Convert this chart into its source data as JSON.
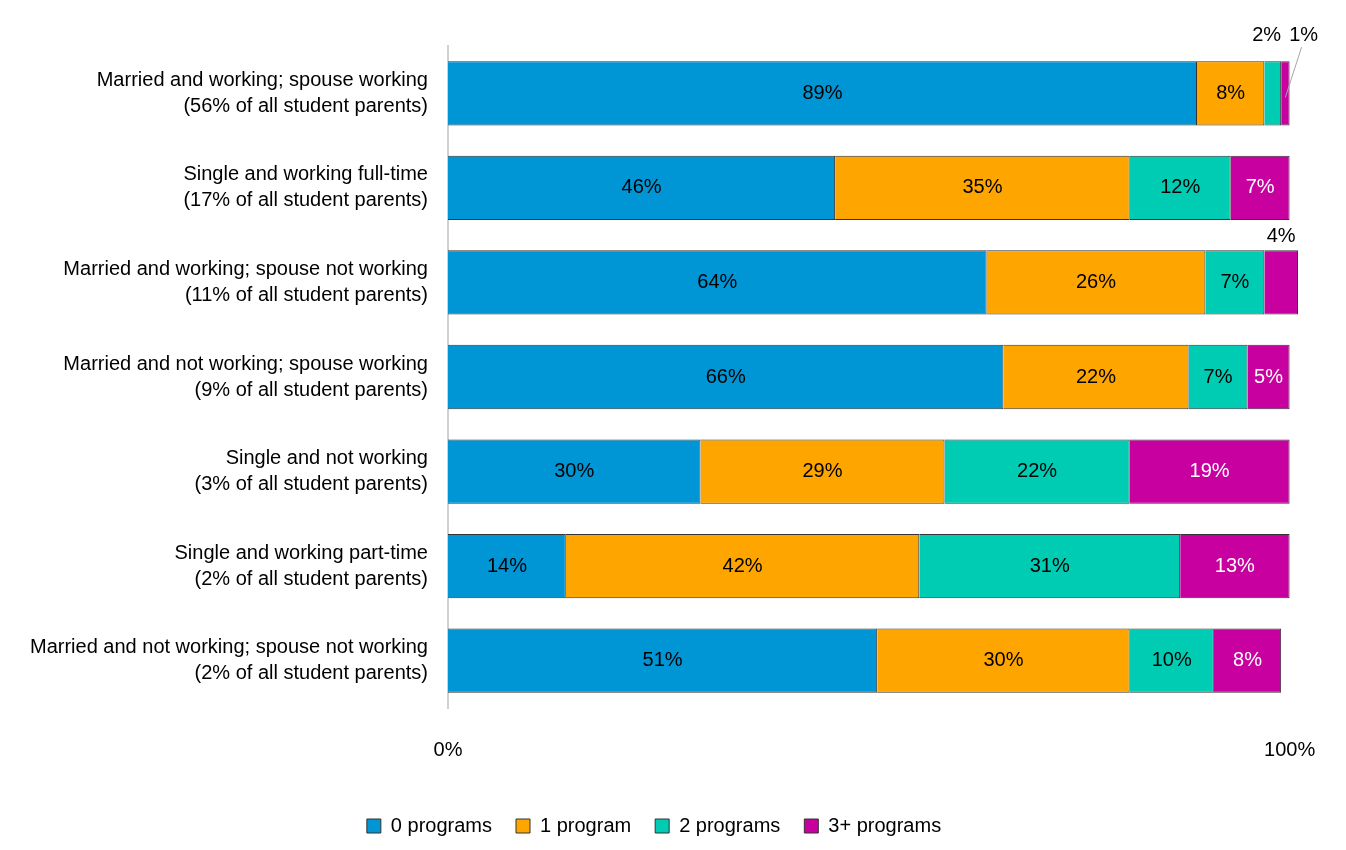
{
  "chart_data": {
    "type": "bar",
    "orientation": "horizontal",
    "stacked": true,
    "categories": [
      "Married and working; spouse working\n(56% of all student parents)",
      "Single and working full-time\n(17% of all student parents)",
      "Married and working; spouse not working\n(11% of all student parents)",
      "Married and not working; spouse working\n(9% of all student parents)",
      "Single and not working\n(3% of all student parents)",
      "Single and working part-time\n(2% of all student parents)",
      "Married and not working; spouse not working\n(2% of all student parents)"
    ],
    "series": [
      {
        "name": "0 programs",
        "color": "#0096d6",
        "values": [
          89,
          46,
          64,
          66,
          30,
          14,
          51
        ],
        "value_labels": [
          "89%",
          "46%",
          "64%",
          "66%",
          "30%",
          "14%",
          "51%"
        ]
      },
      {
        "name": "1 program",
        "color": "#ffa500",
        "values": [
          8,
          35,
          26,
          22,
          29,
          42,
          30
        ],
        "value_labels": [
          "8%",
          "35%",
          "26%",
          "22%",
          "29%",
          "42%",
          "30%"
        ]
      },
      {
        "name": "2 programs",
        "color": "#00ccb4",
        "values": [
          2,
          12,
          7,
          7,
          22,
          31,
          10
        ],
        "value_labels": [
          "2%",
          "12%",
          "7%",
          "7%",
          "22%",
          "31%",
          "10%"
        ]
      },
      {
        "name": "3+ programs",
        "color": "#c800a0",
        "values": [
          1,
          7,
          4,
          5,
          19,
          13,
          8
        ],
        "value_labels": [
          "1%",
          "7%",
          "4%",
          "5%",
          "19%",
          "13%",
          "8%"
        ]
      }
    ],
    "xlim": [
      0,
      101
    ],
    "xticks": [
      {
        "value": 0,
        "label": "0%"
      },
      {
        "value": 100,
        "label": "100%"
      }
    ],
    "grid": false,
    "legend": "bottom"
  }
}
